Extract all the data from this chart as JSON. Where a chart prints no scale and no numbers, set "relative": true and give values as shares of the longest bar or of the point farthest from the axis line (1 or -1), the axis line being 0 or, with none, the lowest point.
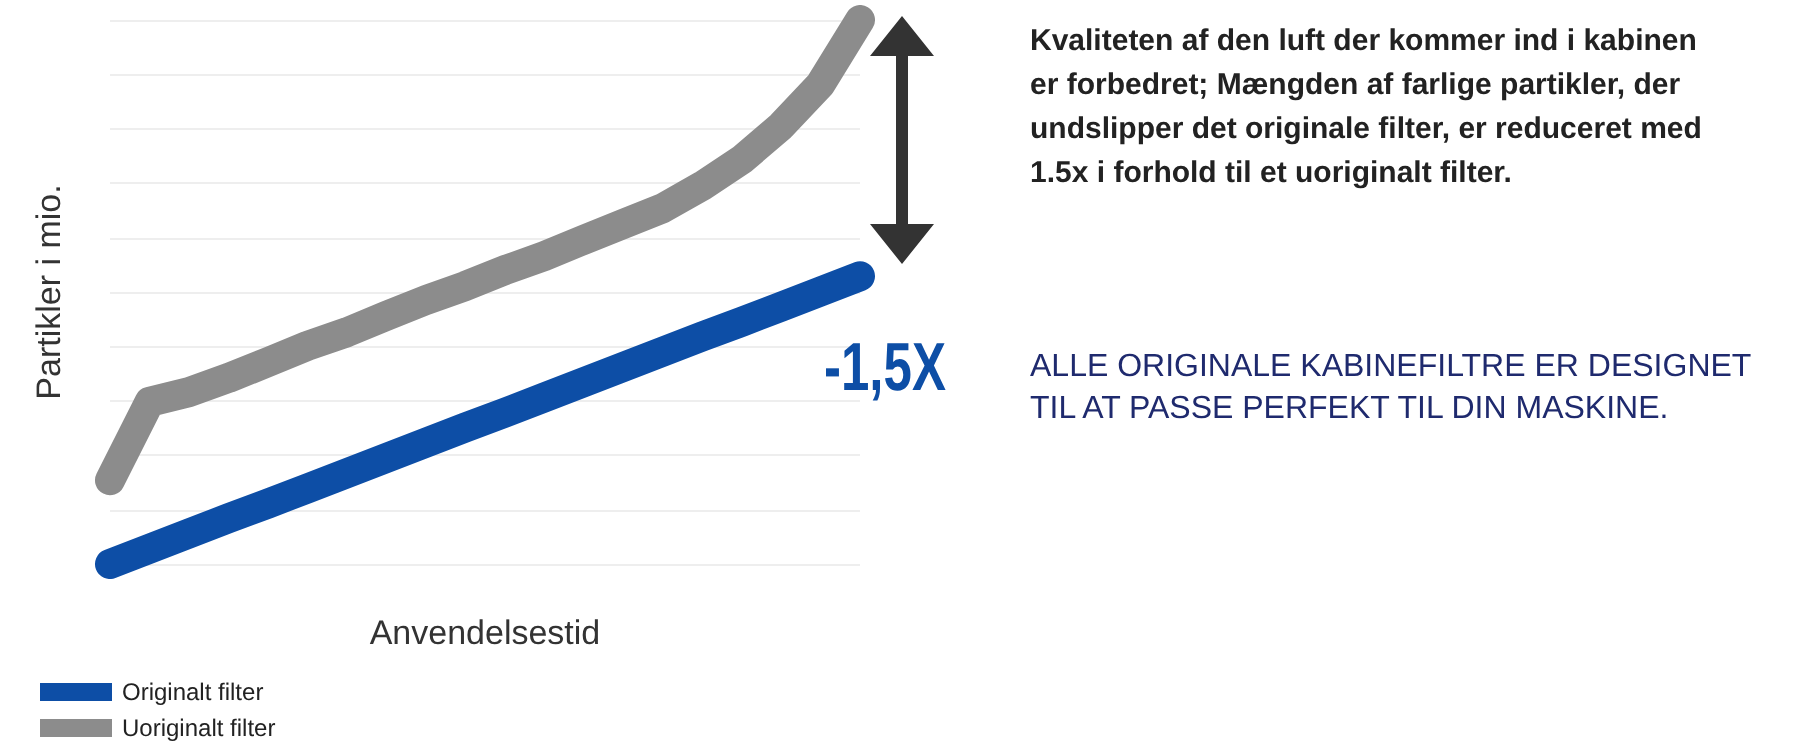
{
  "chart_data": {
    "type": "line",
    "relative": true,
    "xlabel": "Anvendelsestid",
    "ylabel": "Partikler i mio.",
    "categories": [
      null,
      null,
      null,
      null,
      null,
      null,
      null,
      null,
      null,
      null,
      null,
      null,
      null,
      null,
      null,
      null,
      null,
      null,
      null,
      null
    ],
    "series": [
      {
        "name": "Originalt filter",
        "color": "#0d4ea6",
        "values": [
          0,
          0.028,
          0.056,
          0.084,
          0.111,
          0.139,
          0.167,
          0.195,
          0.223,
          0.251,
          0.278,
          0.306,
          0.334,
          0.362,
          0.39,
          0.418,
          0.445,
          0.473,
          0.501,
          0.529
        ]
      },
      {
        "name": "Uoriginalt filter",
        "color": "#8c8c8c",
        "values": [
          0.154,
          0.298,
          0.316,
          0.342,
          0.371,
          0.401,
          0.426,
          0.456,
          0.485,
          0.511,
          0.54,
          0.566,
          0.596,
          0.625,
          0.654,
          0.695,
          0.743,
          0.805,
          0.882,
          1
        ]
      }
    ],
    "annotations": [
      "-1,5X",
      "Kvaliteten af den luft der kommer ind i kabinen er forbedret; Mængden af farlige partikler, der undslipper det originale filter, er reduceret med 1.5x i forhold til et uoriginalt filter.",
      "ALLE ORIGINALE KABINEFILTRE ER DESIGNET TIL AT PASSE PERFEKT TIL DIN MASKINE."
    ],
    "legend": "bottom left",
    "grid": "y",
    "line_style": "solid"
  }
}
